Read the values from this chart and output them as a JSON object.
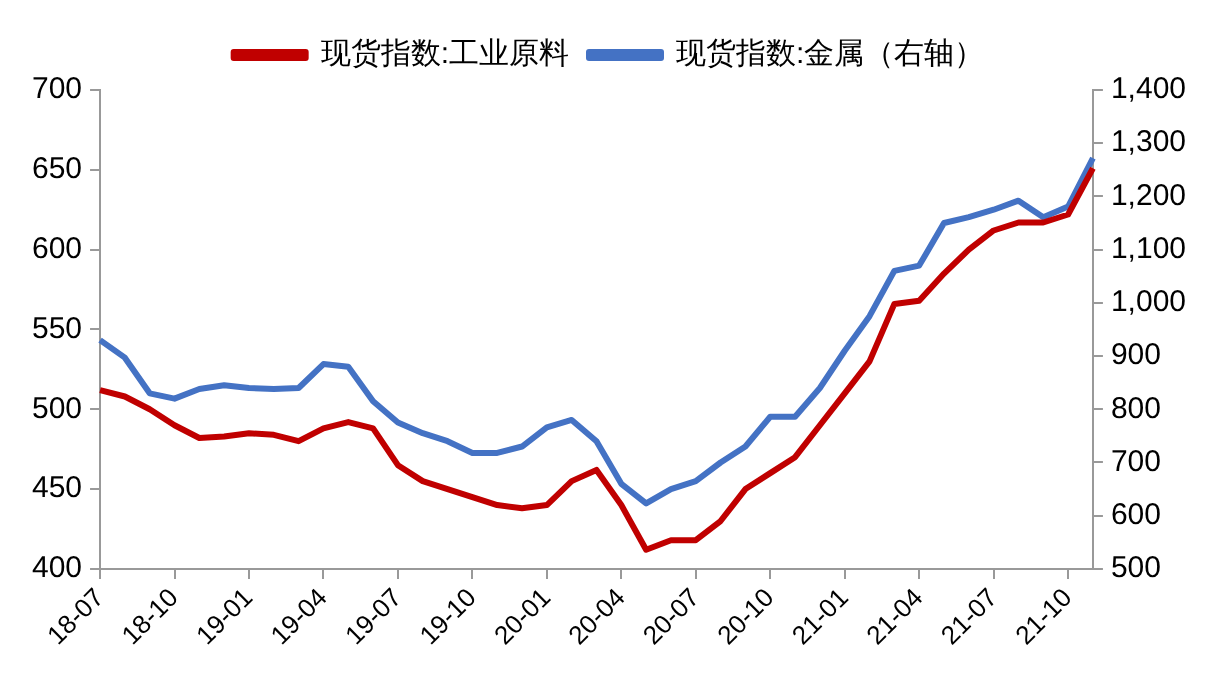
{
  "chart_data": {
    "type": "line",
    "categories": [
      "18-07",
      null,
      null,
      "18-10",
      null,
      null,
      "19-01",
      null,
      null,
      "19-04",
      null,
      null,
      "19-07",
      null,
      null,
      "19-10",
      null,
      null,
      "20-01",
      null,
      null,
      "20-04",
      null,
      null,
      "20-07",
      null,
      null,
      "20-10",
      null,
      null,
      "21-01",
      null,
      null,
      "21-04",
      null,
      null,
      "21-07",
      null,
      null,
      "21-10",
      null
    ],
    "series": [
      {
        "name": "现货指数:工业原料",
        "color": "#c00000",
        "values": [
          512,
          508,
          500,
          490,
          482,
          483,
          485,
          484,
          480,
          488,
          492,
          488,
          465,
          455,
          450,
          445,
          440,
          438,
          440,
          455,
          462,
          440,
          412,
          418,
          418,
          430,
          450,
          460,
          470,
          490,
          510,
          530,
          566,
          568,
          585,
          600,
          612,
          617,
          617,
          622,
          651
        ]
      },
      {
        "name": "现货指数:金属（右轴）",
        "color": "#4472c4",
        "axis": "y2",
        "values": [
          930,
          897,
          830,
          820,
          838,
          845,
          840,
          838,
          840,
          885,
          880,
          815,
          775,
          755,
          740,
          718,
          718,
          730,
          766,
          780,
          740,
          660,
          623,
          650,
          665,
          700,
          730,
          786,
          786,
          840,
          910,
          975,
          1060,
          1070,
          1150,
          1161,
          1175,
          1192,
          1161,
          1181,
          1272
        ]
      }
    ],
    "ylim": [
      400,
      700
    ],
    "yticks": [
      400,
      450,
      500,
      550,
      600,
      650,
      700
    ],
    "y2lim": [
      500,
      1400
    ],
    "y2ticks": [
      500,
      600,
      700,
      800,
      900,
      {
        "value": 1000,
        "label": "1,000"
      },
      {
        "value": 1100,
        "label": "1,100"
      },
      {
        "value": 1200,
        "label": "1,200"
      },
      {
        "value": 1300,
        "label": "1,300"
      },
      {
        "value": 1400,
        "label": "1,400"
      }
    ],
    "grid": false,
    "legend": "top",
    "marker": "none",
    "line_style": "solid"
  }
}
